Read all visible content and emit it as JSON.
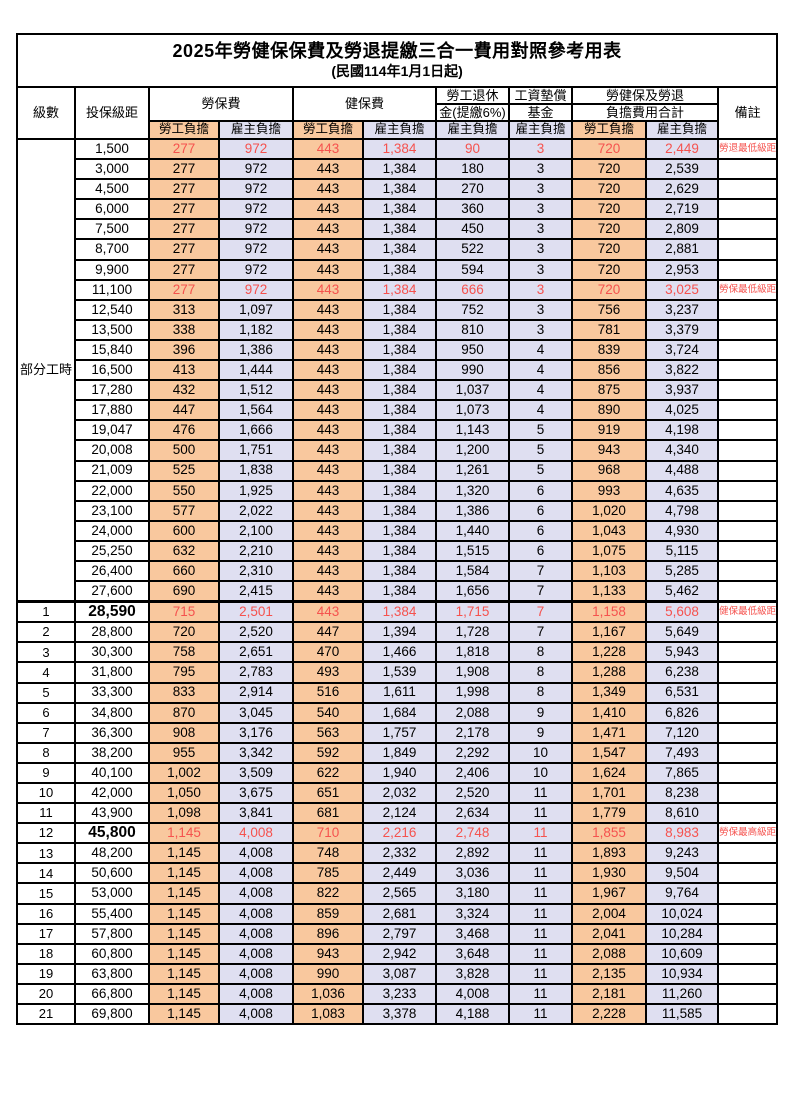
{
  "colors": {
    "employee_bg": "#F9C89E",
    "employer_bg": "#DFDFF1",
    "highlight_text": "#F5524E",
    "border": "#000000"
  },
  "header": {
    "title": "2025年勞健保保費及勞退提繳三合一費用對照參考用表",
    "subtitle": "(民國114年1月1日起)",
    "col_level": "級數",
    "col_salary": "投保級距",
    "col_labor": "勞保費",
    "col_health": "健保費",
    "col_pension_line1": "勞工退休",
    "col_pension_line2": "金(提繳6%)",
    "col_wage_fund_line1": "工資墊償",
    "col_wage_fund_line2": "基金",
    "col_total_line1": "勞健保及勞退",
    "col_total_line2": "負擔費用合計",
    "col_remark": "備註",
    "sub_employee": "勞工負擔",
    "sub_employer": "雇主負擔"
  },
  "table": {
    "part_time_label": "部分工時",
    "rows": [
      {
        "group": {
          "label": "部分工時",
          "span": 23
        },
        "salary": "1,500",
        "labor_emp": "277",
        "labor_er": "972",
        "health_emp": "443",
        "health_er": "1,384",
        "pension_er": "90",
        "fund_er": "3",
        "total_emp": "720",
        "total_er": "2,449",
        "remark": "勞退最低級距",
        "red": true
      },
      {
        "salary": "3,000",
        "labor_emp": "277",
        "labor_er": "972",
        "health_emp": "443",
        "health_er": "1,384",
        "pension_er": "180",
        "fund_er": "3",
        "total_emp": "720",
        "total_er": "2,539"
      },
      {
        "salary": "4,500",
        "labor_emp": "277",
        "labor_er": "972",
        "health_emp": "443",
        "health_er": "1,384",
        "pension_er": "270",
        "fund_er": "3",
        "total_emp": "720",
        "total_er": "2,629"
      },
      {
        "salary": "6,000",
        "labor_emp": "277",
        "labor_er": "972",
        "health_emp": "443",
        "health_er": "1,384",
        "pension_er": "360",
        "fund_er": "3",
        "total_emp": "720",
        "total_er": "2,719"
      },
      {
        "salary": "7,500",
        "labor_emp": "277",
        "labor_er": "972",
        "health_emp": "443",
        "health_er": "1,384",
        "pension_er": "450",
        "fund_er": "3",
        "total_emp": "720",
        "total_er": "2,809"
      },
      {
        "salary": "8,700",
        "labor_emp": "277",
        "labor_er": "972",
        "health_emp": "443",
        "health_er": "1,384",
        "pension_er": "522",
        "fund_er": "3",
        "total_emp": "720",
        "total_er": "2,881"
      },
      {
        "salary": "9,900",
        "labor_emp": "277",
        "labor_er": "972",
        "health_emp": "443",
        "health_er": "1,384",
        "pension_er": "594",
        "fund_er": "3",
        "total_emp": "720",
        "total_er": "2,953"
      },
      {
        "salary": "11,100",
        "labor_emp": "277",
        "labor_er": "972",
        "health_emp": "443",
        "health_er": "1,384",
        "pension_er": "666",
        "fund_er": "3",
        "total_emp": "720",
        "total_er": "3,025",
        "remark": "勞保最低級距",
        "red": true
      },
      {
        "salary": "12,540",
        "labor_emp": "313",
        "labor_er": "1,097",
        "health_emp": "443",
        "health_er": "1,384",
        "pension_er": "752",
        "fund_er": "3",
        "total_emp": "756",
        "total_er": "3,237"
      },
      {
        "salary": "13,500",
        "labor_emp": "338",
        "labor_er": "1,182",
        "health_emp": "443",
        "health_er": "1,384",
        "pension_er": "810",
        "fund_er": "3",
        "total_emp": "781",
        "total_er": "3,379"
      },
      {
        "salary": "15,840",
        "labor_emp": "396",
        "labor_er": "1,386",
        "health_emp": "443",
        "health_er": "1,384",
        "pension_er": "950",
        "fund_er": "4",
        "total_emp": "839",
        "total_er": "3,724"
      },
      {
        "salary": "16,500",
        "labor_emp": "413",
        "labor_er": "1,444",
        "health_emp": "443",
        "health_er": "1,384",
        "pension_er": "990",
        "fund_er": "4",
        "total_emp": "856",
        "total_er": "3,822"
      },
      {
        "salary": "17,280",
        "labor_emp": "432",
        "labor_er": "1,512",
        "health_emp": "443",
        "health_er": "1,384",
        "pension_er": "1,037",
        "fund_er": "4",
        "total_emp": "875",
        "total_er": "3,937"
      },
      {
        "salary": "17,880",
        "labor_emp": "447",
        "labor_er": "1,564",
        "health_emp": "443",
        "health_er": "1,384",
        "pension_er": "1,073",
        "fund_er": "4",
        "total_emp": "890",
        "total_er": "4,025"
      },
      {
        "salary": "19,047",
        "labor_emp": "476",
        "labor_er": "1,666",
        "health_emp": "443",
        "health_er": "1,384",
        "pension_er": "1,143",
        "fund_er": "5",
        "total_emp": "919",
        "total_er": "4,198"
      },
      {
        "salary": "20,008",
        "labor_emp": "500",
        "labor_er": "1,751",
        "health_emp": "443",
        "health_er": "1,384",
        "pension_er": "1,200",
        "fund_er": "5",
        "total_emp": "943",
        "total_er": "4,340"
      },
      {
        "salary": "21,009",
        "labor_emp": "525",
        "labor_er": "1,838",
        "health_emp": "443",
        "health_er": "1,384",
        "pension_er": "1,261",
        "fund_er": "5",
        "total_emp": "968",
        "total_er": "4,488"
      },
      {
        "salary": "22,000",
        "labor_emp": "550",
        "labor_er": "1,925",
        "health_emp": "443",
        "health_er": "1,384",
        "pension_er": "1,320",
        "fund_er": "6",
        "total_emp": "993",
        "total_er": "4,635"
      },
      {
        "salary": "23,100",
        "labor_emp": "577",
        "labor_er": "2,022",
        "health_emp": "443",
        "health_er": "1,384",
        "pension_er": "1,386",
        "fund_er": "6",
        "total_emp": "1,020",
        "total_er": "4,798"
      },
      {
        "salary": "24,000",
        "labor_emp": "600",
        "labor_er": "2,100",
        "health_emp": "443",
        "health_er": "1,384",
        "pension_er": "1,440",
        "fund_er": "6",
        "total_emp": "1,043",
        "total_er": "4,930"
      },
      {
        "salary": "25,250",
        "labor_emp": "632",
        "labor_er": "2,210",
        "health_emp": "443",
        "health_er": "1,384",
        "pension_er": "1,515",
        "fund_er": "6",
        "total_emp": "1,075",
        "total_er": "5,115"
      },
      {
        "salary": "26,400",
        "labor_emp": "660",
        "labor_er": "2,310",
        "health_emp": "443",
        "health_er": "1,384",
        "pension_er": "1,584",
        "fund_er": "7",
        "total_emp": "1,103",
        "total_er": "5,285"
      },
      {
        "salary": "27,600",
        "labor_emp": "690",
        "labor_er": "2,415",
        "health_emp": "443",
        "health_er": "1,384",
        "pension_er": "1,656",
        "fund_er": "7",
        "total_emp": "1,133",
        "total_er": "5,462"
      },
      {
        "level": "1",
        "salary": "28,590",
        "labor_emp": "715",
        "labor_er": "2,501",
        "health_emp": "443",
        "health_er": "1,384",
        "pension_er": "1,715",
        "fund_er": "7",
        "total_emp": "1,158",
        "total_er": "5,608",
        "remark": "健保最低級距",
        "red": true,
        "bold_salary": true,
        "section": true
      },
      {
        "level": "2",
        "salary": "28,800",
        "labor_emp": "720",
        "labor_er": "2,520",
        "health_emp": "447",
        "health_er": "1,394",
        "pension_er": "1,728",
        "fund_er": "7",
        "total_emp": "1,167",
        "total_er": "5,649"
      },
      {
        "level": "3",
        "salary": "30,300",
        "labor_emp": "758",
        "labor_er": "2,651",
        "health_emp": "470",
        "health_er": "1,466",
        "pension_er": "1,818",
        "fund_er": "8",
        "total_emp": "1,228",
        "total_er": "5,943"
      },
      {
        "level": "4",
        "salary": "31,800",
        "labor_emp": "795",
        "labor_er": "2,783",
        "health_emp": "493",
        "health_er": "1,539",
        "pension_er": "1,908",
        "fund_er": "8",
        "total_emp": "1,288",
        "total_er": "6,238"
      },
      {
        "level": "5",
        "salary": "33,300",
        "labor_emp": "833",
        "labor_er": "2,914",
        "health_emp": "516",
        "health_er": "1,611",
        "pension_er": "1,998",
        "fund_er": "8",
        "total_emp": "1,349",
        "total_er": "6,531"
      },
      {
        "level": "6",
        "salary": "34,800",
        "labor_emp": "870",
        "labor_er": "3,045",
        "health_emp": "540",
        "health_er": "1,684",
        "pension_er": "2,088",
        "fund_er": "9",
        "total_emp": "1,410",
        "total_er": "6,826"
      },
      {
        "level": "7",
        "salary": "36,300",
        "labor_emp": "908",
        "labor_er": "3,176",
        "health_emp": "563",
        "health_er": "1,757",
        "pension_er": "2,178",
        "fund_er": "9",
        "total_emp": "1,471",
        "total_er": "7,120"
      },
      {
        "level": "8",
        "salary": "38,200",
        "labor_emp": "955",
        "labor_er": "3,342",
        "health_emp": "592",
        "health_er": "1,849",
        "pension_er": "2,292",
        "fund_er": "10",
        "total_emp": "1,547",
        "total_er": "7,493"
      },
      {
        "level": "9",
        "salary": "40,100",
        "labor_emp": "1,002",
        "labor_er": "3,509",
        "health_emp": "622",
        "health_er": "1,940",
        "pension_er": "2,406",
        "fund_er": "10",
        "total_emp": "1,624",
        "total_er": "7,865"
      },
      {
        "level": "10",
        "salary": "42,000",
        "labor_emp": "1,050",
        "labor_er": "3,675",
        "health_emp": "651",
        "health_er": "2,032",
        "pension_er": "2,520",
        "fund_er": "11",
        "total_emp": "1,701",
        "total_er": "8,238"
      },
      {
        "level": "11",
        "salary": "43,900",
        "labor_emp": "1,098",
        "labor_er": "3,841",
        "health_emp": "681",
        "health_er": "2,124",
        "pension_er": "2,634",
        "fund_er": "11",
        "total_emp": "1,779",
        "total_er": "8,610"
      },
      {
        "level": "12",
        "salary": "45,800",
        "labor_emp": "1,145",
        "labor_er": "4,008",
        "health_emp": "710",
        "health_er": "2,216",
        "pension_er": "2,748",
        "fund_er": "11",
        "total_emp": "1,855",
        "total_er": "8,983",
        "remark": "勞保最高級距",
        "red": true,
        "bold_salary": true
      },
      {
        "level": "13",
        "salary": "48,200",
        "labor_emp": "1,145",
        "labor_er": "4,008",
        "health_emp": "748",
        "health_er": "2,332",
        "pension_er": "2,892",
        "fund_er": "11",
        "total_emp": "1,893",
        "total_er": "9,243"
      },
      {
        "level": "14",
        "salary": "50,600",
        "labor_emp": "1,145",
        "labor_er": "4,008",
        "health_emp": "785",
        "health_er": "2,449",
        "pension_er": "3,036",
        "fund_er": "11",
        "total_emp": "1,930",
        "total_er": "9,504"
      },
      {
        "level": "15",
        "salary": "53,000",
        "labor_emp": "1,145",
        "labor_er": "4,008",
        "health_emp": "822",
        "health_er": "2,565",
        "pension_er": "3,180",
        "fund_er": "11",
        "total_emp": "1,967",
        "total_er": "9,764"
      },
      {
        "level": "16",
        "salary": "55,400",
        "labor_emp": "1,145",
        "labor_er": "4,008",
        "health_emp": "859",
        "health_er": "2,681",
        "pension_er": "3,324",
        "fund_er": "11",
        "total_emp": "2,004",
        "total_er": "10,024"
      },
      {
        "level": "17",
        "salary": "57,800",
        "labor_emp": "1,145",
        "labor_er": "4,008",
        "health_emp": "896",
        "health_er": "2,797",
        "pension_er": "3,468",
        "fund_er": "11",
        "total_emp": "2,041",
        "total_er": "10,284"
      },
      {
        "level": "18",
        "salary": "60,800",
        "labor_emp": "1,145",
        "labor_er": "4,008",
        "health_emp": "943",
        "health_er": "2,942",
        "pension_er": "3,648",
        "fund_er": "11",
        "total_emp": "2,088",
        "total_er": "10,609"
      },
      {
        "level": "19",
        "salary": "63,800",
        "labor_emp": "1,145",
        "labor_er": "4,008",
        "health_emp": "990",
        "health_er": "3,087",
        "pension_er": "3,828",
        "fund_er": "11",
        "total_emp": "2,135",
        "total_er": "10,934"
      },
      {
        "level": "20",
        "salary": "66,800",
        "labor_emp": "1,145",
        "labor_er": "4,008",
        "health_emp": "1,036",
        "health_er": "3,233",
        "pension_er": "4,008",
        "fund_er": "11",
        "total_emp": "2,181",
        "total_er": "11,260"
      },
      {
        "level": "21",
        "salary": "69,800",
        "labor_emp": "1,145",
        "labor_er": "4,008",
        "health_emp": "1,083",
        "health_er": "3,378",
        "pension_er": "4,188",
        "fund_er": "11",
        "total_emp": "2,228",
        "total_er": "11,585"
      }
    ]
  }
}
